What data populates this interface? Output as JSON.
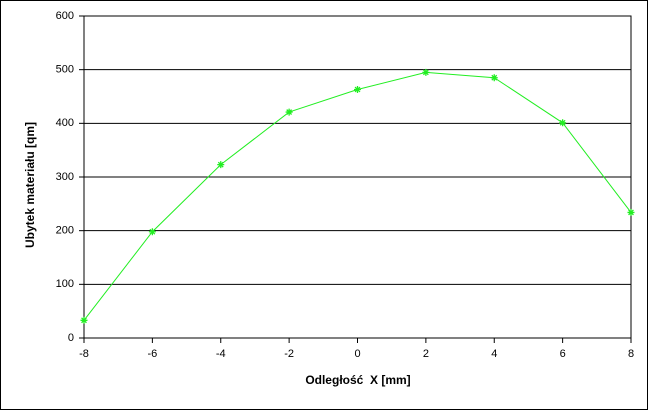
{
  "chart_data": {
    "type": "line",
    "x_label": "Odległość  X [mm]",
    "y_label": "Ubytek materiału [qm]",
    "x": [
      -8,
      -6,
      -4,
      -2,
      0,
      2,
      4,
      6,
      8
    ],
    "series": [
      {
        "name": "Ubytek materiału",
        "color": "#22ee22",
        "values": [
          33,
          198,
          323,
          421,
          463,
          495,
          485,
          401,
          234
        ]
      }
    ],
    "xlim": [
      -8,
      8
    ],
    "xticks": [
      -8,
      -6,
      -4,
      -2,
      0,
      2,
      4,
      6,
      8
    ],
    "ylim": [
      0,
      600
    ],
    "yticks": [
      0,
      100,
      200,
      300,
      400,
      500,
      600
    ],
    "grid": true
  }
}
